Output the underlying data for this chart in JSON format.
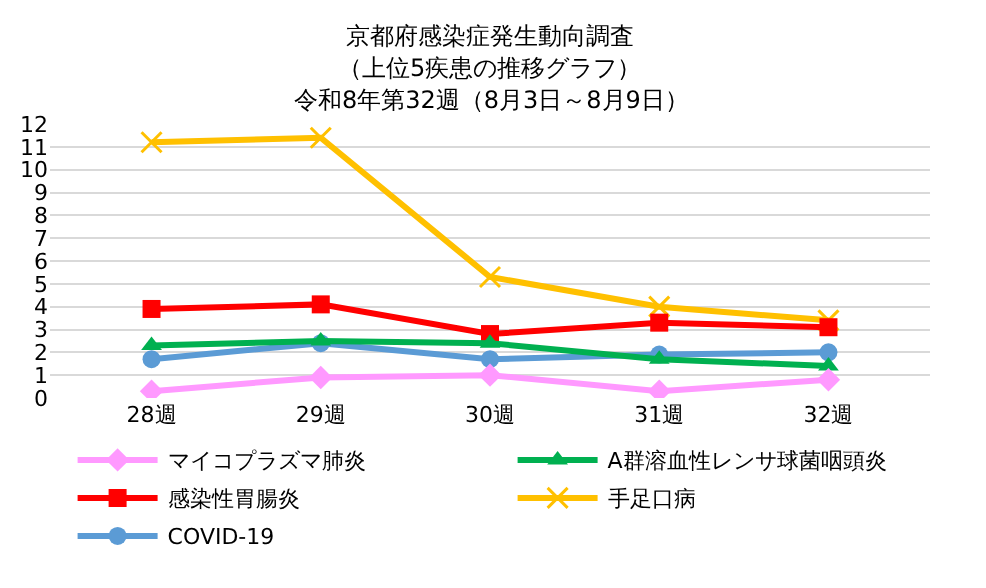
{
  "chart_data": {
    "type": "line",
    "title": "京都府感染症発生動向調査",
    "subtitle": "（上位5疾患の推移グラフ）",
    "annotations": [
      "令和8年第32週（8月3日～8月9日）"
    ],
    "categories": [
      "28週",
      "29週",
      "30週",
      "31週",
      "32週"
    ],
    "series": [
      {
        "name": "マイコプラズマ肺炎",
        "color": "#ff99ff",
        "marker": "diamond",
        "values": [
          0.3,
          0.9,
          1.0,
          0.3,
          0.8
        ]
      },
      {
        "name": "A群溶血性レンサ球菌咽頭炎",
        "color": "#00b050",
        "marker": "triangle",
        "values": [
          2.3,
          2.5,
          2.4,
          1.7,
          1.4
        ]
      },
      {
        "name": "感染性胃腸炎",
        "color": "#ff0000",
        "marker": "square",
        "values": [
          3.9,
          4.1,
          2.8,
          3.3,
          3.1
        ]
      },
      {
        "name": "手足口病",
        "color": "#ffc000",
        "marker": "cross",
        "values": [
          11.2,
          11.4,
          5.3,
          4.0,
          3.4
        ]
      },
      {
        "name": "COVID-19",
        "color": "#5b9bd5",
        "marker": "circle",
        "values": [
          1.7,
          2.4,
          1.7,
          1.9,
          2.0
        ]
      }
    ],
    "ylim": [
      0,
      12
    ],
    "yticks": [
      0,
      1,
      2,
      3,
      4,
      5,
      6,
      7,
      8,
      9,
      10,
      11,
      12
    ],
    "grid": "y",
    "legend": "bottom",
    "line_style": "solid"
  }
}
